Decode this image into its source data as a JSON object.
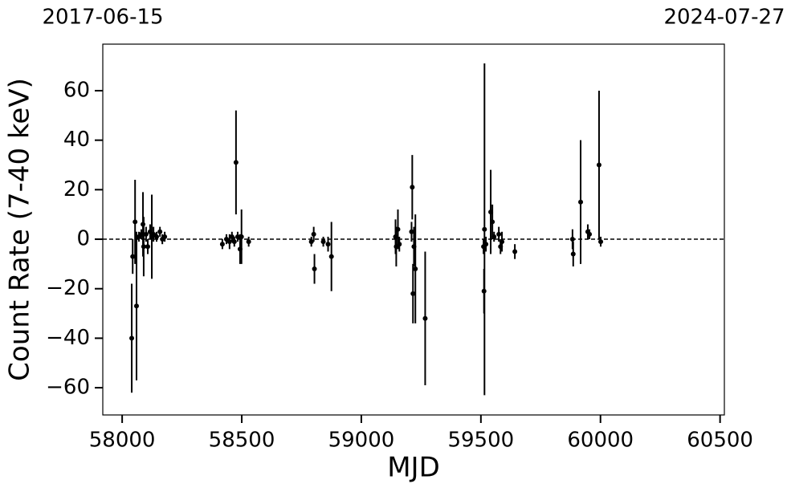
{
  "chart_data": {
    "type": "scatter",
    "xlabel": "MJD",
    "ylabel": "Count Rate (7-40 keV)",
    "color": "#000000",
    "x": [
      58040,
      58044,
      58054,
      58060,
      58070,
      58080,
      58087,
      58090,
      58100,
      58107,
      58117,
      58124,
      58131,
      58144,
      58158,
      58168,
      58178,
      58419,
      58436,
      58449,
      58459,
      58469,
      58476,
      58483,
      58493,
      58499,
      58529,
      58791,
      58801,
      58804,
      58841,
      58861,
      58875,
      59143,
      59146,
      59153,
      59159,
      59210,
      59213,
      59216,
      59220,
      59226,
      59267,
      59511,
      59513,
      59515,
      59521,
      59541,
      59548,
      59555,
      59575,
      59582,
      59588,
      59642,
      59883,
      59886,
      59917,
      59947,
      59954,
      59994,
      60001
    ],
    "values": [
      -40,
      -7,
      7,
      -27,
      1,
      2,
      6,
      -3,
      2,
      -3,
      3,
      1,
      2,
      1,
      3,
      0,
      1,
      -2,
      0,
      -1,
      1,
      -1,
      31,
      1,
      -4,
      1,
      -1,
      -1,
      2,
      -12,
      -1,
      -2,
      -7,
      1,
      -3,
      4,
      -2,
      3,
      21,
      -22,
      -3,
      -12,
      -32,
      -3,
      -21,
      4,
      -2,
      11,
      7,
      1,
      2,
      -3,
      -1,
      -5,
      0,
      -6,
      15,
      3,
      2,
      30,
      -1
    ],
    "errors": [
      22,
      7,
      17,
      30,
      2,
      2,
      13,
      12,
      3,
      3,
      3,
      17,
      3,
      2,
      2,
      2,
      2,
      2,
      2,
      3,
      2,
      2,
      21,
      2,
      6,
      11,
      2,
      2,
      3,
      6,
      2,
      3,
      14,
      7,
      8,
      8,
      3,
      4,
      13,
      12,
      8,
      22,
      27,
      3,
      9,
      67,
      3,
      17,
      7,
      2,
      3,
      3,
      4,
      3,
      4,
      5,
      25,
      3,
      2,
      30,
      2
    ],
    "hline": 0,
    "xlim": [
      57919,
      60518
    ],
    "ylim": [
      -71,
      78.8
    ],
    "xticks": [
      58000,
      58500,
      59000,
      59500,
      60000,
      60500
    ],
    "yticks": [
      {
        "value": -60,
        "label": "−60"
      },
      {
        "value": -40,
        "label": "−40"
      },
      {
        "value": -20,
        "label": "−20"
      },
      0,
      20,
      40,
      60
    ],
    "x2ticks": [
      {
        "value": 57919,
        "label": "2017-06-15"
      },
      {
        "value": 60518,
        "label": "2024-07-27"
      }
    ]
  }
}
